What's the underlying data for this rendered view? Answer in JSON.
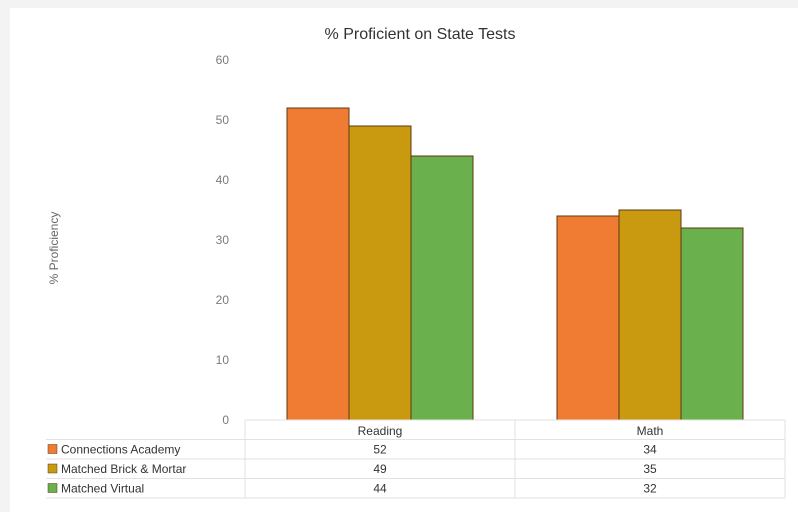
{
  "chart_data": {
    "type": "bar",
    "title": "% Proficient on State Tests",
    "ylabel": "% Proficiency",
    "xlabel": "",
    "ylim": [
      0,
      60
    ],
    "yticks": [
      0,
      10,
      20,
      30,
      40,
      50,
      60
    ],
    "categories": [
      "Reading",
      "Math"
    ],
    "series": [
      {
        "name": "Connections Academy",
        "values": [
          52,
          34
        ],
        "color": "#f07c33"
      },
      {
        "name": "Matched Brick & Mortar",
        "values": [
          49,
          35
        ],
        "color": "#c99a10"
      },
      {
        "name": "Matched Virtual",
        "values": [
          44,
          32
        ],
        "color": "#6ab04c"
      }
    ],
    "legend": "data table below chart",
    "grid": false
  }
}
